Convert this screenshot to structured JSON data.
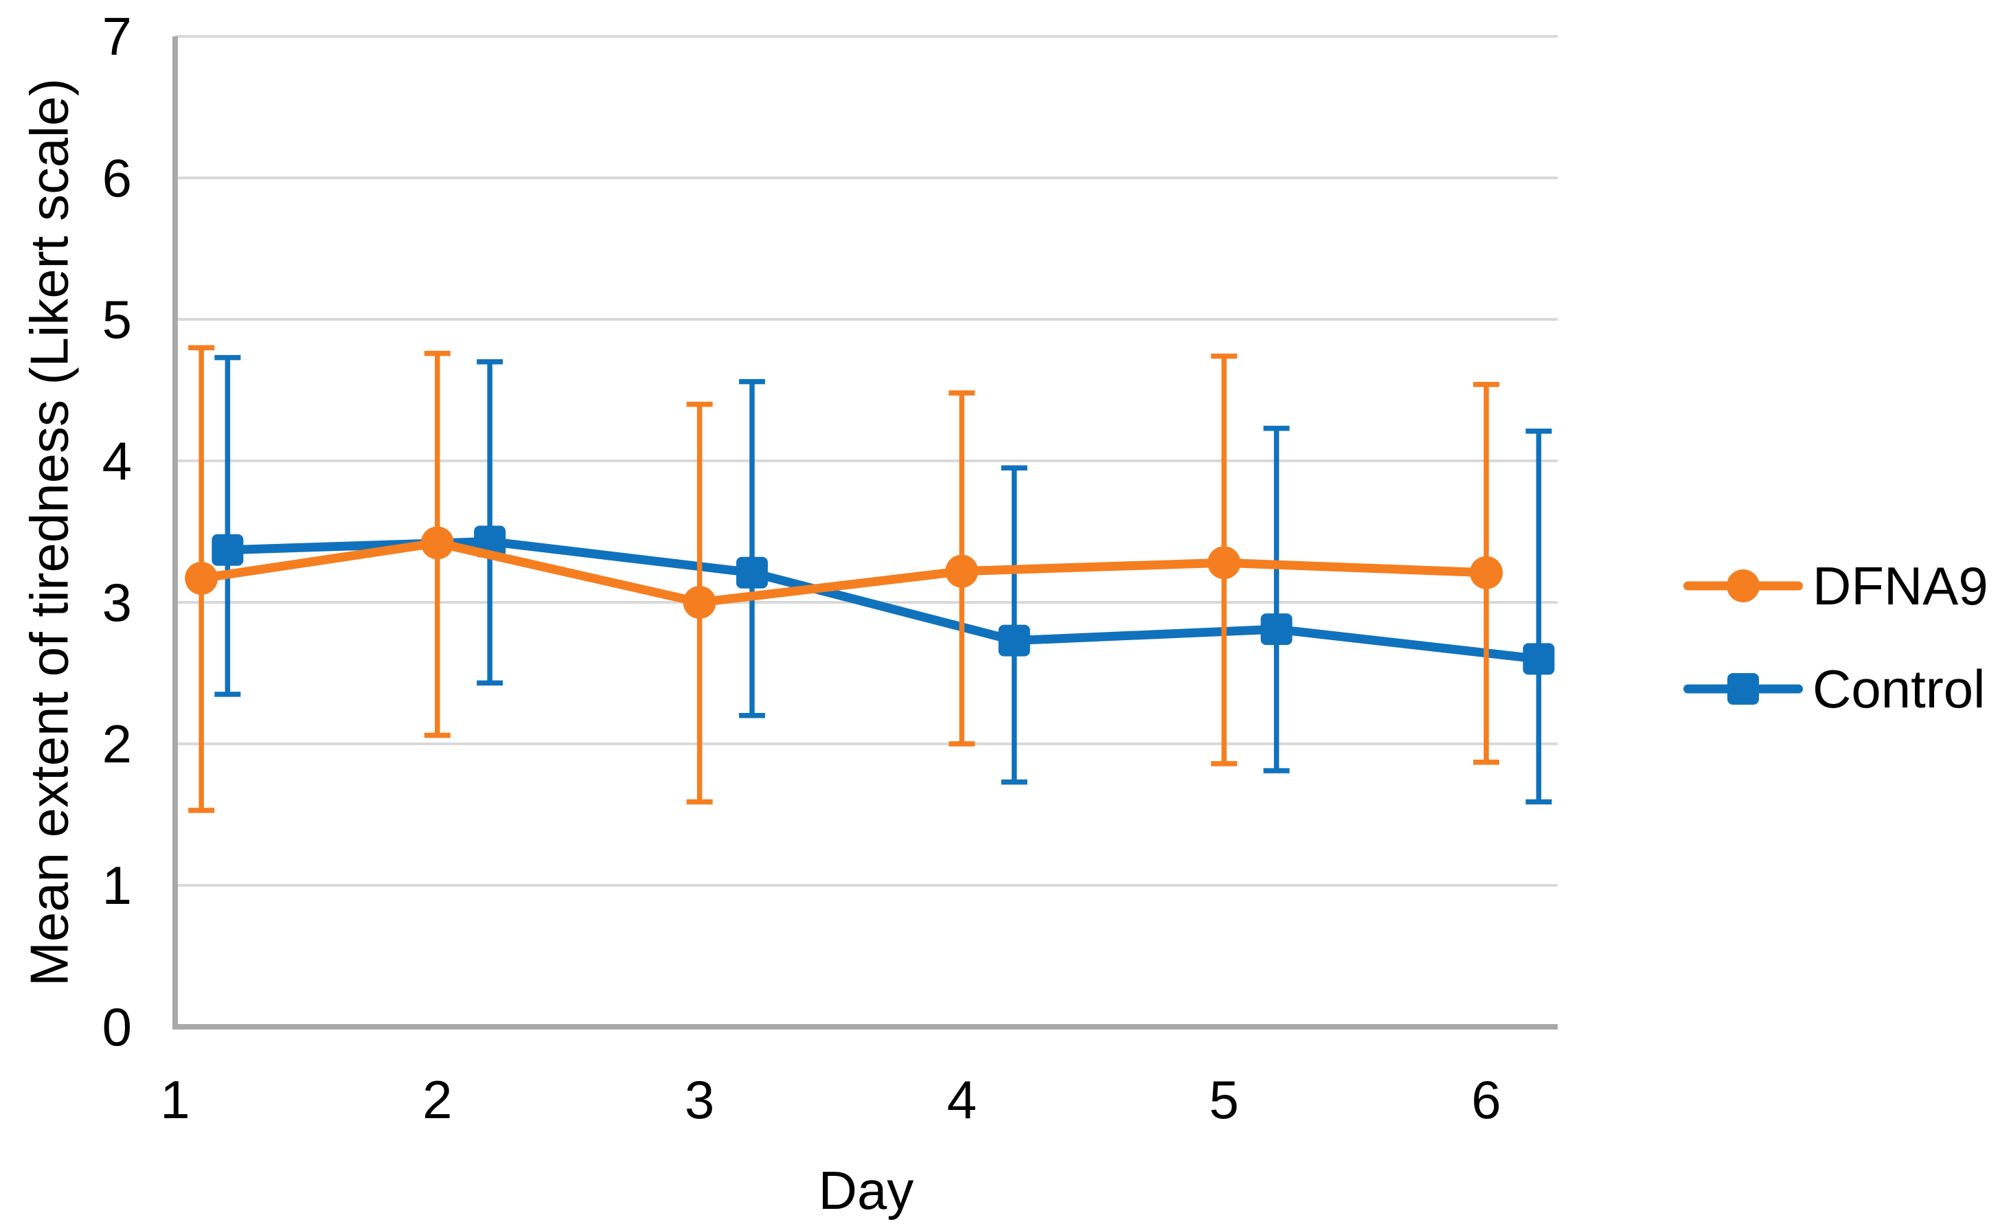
{
  "chart_data": {
    "type": "line",
    "title": "",
    "xlabel": "Day",
    "ylabel": "Mean extent of tiredness (Likert scale)",
    "x_ticks": [
      "1",
      "2",
      "3",
      "4",
      "5",
      "6"
    ],
    "y_ticks": [
      "0",
      "1",
      "2",
      "3",
      "4",
      "5",
      "6",
      "7"
    ],
    "xlim": [
      1,
      6.28
    ],
    "ylim": [
      0,
      7
    ],
    "grid": "horizontal-only",
    "legend_position": "right-middle",
    "colors": {
      "gridline": "#D9D9D9",
      "axis_line": "#A9A9A9",
      "text": "#000000",
      "background": "#FFFFFF"
    },
    "series": [
      {
        "name": "DFNA9",
        "color": "#F57E20",
        "marker": "circle",
        "x": [
          1.1,
          2,
          3,
          4,
          5,
          6
        ],
        "y": [
          3.17,
          3.42,
          3.0,
          3.22,
          3.28,
          3.21
        ],
        "err_upper": [
          4.8,
          4.76,
          4.4,
          4.48,
          4.74,
          4.54
        ],
        "err_lower": [
          1.53,
          2.06,
          1.59,
          2.0,
          1.86,
          1.87
        ]
      },
      {
        "name": "Control",
        "color": "#1072BC",
        "marker": "square",
        "x": [
          1.2,
          2.2,
          3.2,
          4.2,
          5.2,
          6.2
        ],
        "y": [
          3.37,
          3.43,
          3.21,
          2.73,
          2.81,
          2.6
        ],
        "err_upper": [
          4.73,
          4.7,
          4.56,
          3.95,
          4.23,
          4.21
        ],
        "err_lower": [
          2.35,
          2.43,
          2.2,
          1.73,
          1.81,
          1.59
        ]
      }
    ]
  },
  "legend": {
    "items": [
      {
        "label": "DFNA9"
      },
      {
        "label": "Control"
      }
    ]
  },
  "axes": {
    "x_title": "Day",
    "y_title": "Mean extent of tiredness (Likert scale)"
  }
}
